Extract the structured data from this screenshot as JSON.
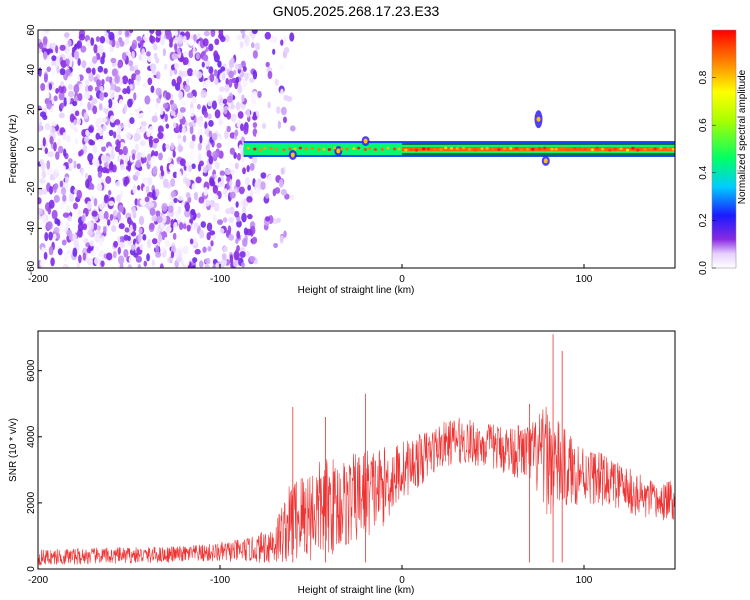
{
  "chart_data": [
    {
      "type": "heatmap",
      "title": "GN05.2025.268.17.23.E33",
      "xlabel": "Height of straight line (km)",
      "ylabel": "Frequency (Hz)",
      "xlim": [
        -200,
        150
      ],
      "ylim": [
        -60,
        60
      ],
      "x_ticks": [
        -200,
        -100,
        0,
        100
      ],
      "x_tick_labels": [
        "-200",
        "-100",
        "0",
        "100"
      ],
      "y_ticks": [
        -60,
        -40,
        -20,
        0,
        20,
        40,
        60
      ],
      "y_tick_labels": [
        "-60",
        "-40",
        "-20",
        "0",
        "20",
        "40",
        "60"
      ],
      "grid": false,
      "colorbar": {
        "label": "Normalized spectral amplitude",
        "range": [
          0,
          1
        ],
        "ticks": [
          0,
          0.2,
          0.4,
          0.6,
          0.8
        ],
        "tick_labels": [
          "0.0",
          "0.2",
          "0.4",
          "0.6",
          "0.8"
        ],
        "colormap": "rainbow (purple to red)"
      },
      "features": {
        "noise_region_x": [
          -200,
          -60
        ],
        "noise_amplitude": 0.15,
        "dense_noise_until_x": -80,
        "signal_band_x": [
          -87,
          150
        ],
        "signal_band_y": [
          -3,
          3
        ],
        "signal_amplitude": 0.9,
        "disturbances": [
          {
            "x": -20,
            "y": 4
          },
          {
            "x": -35,
            "y": -1
          },
          {
            "x": -60,
            "y": -3
          },
          {
            "x": 75,
            "y": 15
          },
          {
            "x": 79,
            "y": -6
          }
        ]
      }
    },
    {
      "type": "line",
      "title": "",
      "xlabel": "Height of straight line (km)",
      "ylabel": "SNR (10 * v/v)",
      "xlim": [
        -200,
        150
      ],
      "ylim": [
        0,
        7200
      ],
      "x_ticks": [
        -200,
        -100,
        0,
        100
      ],
      "x_tick_labels": [
        "-200",
        "-100",
        "0",
        "100"
      ],
      "y_ticks": [
        0,
        2000,
        4000,
        6000
      ],
      "y_tick_labels": [
        "0",
        "2000",
        "4000",
        "6000"
      ],
      "grid": false,
      "series": [
        {
          "color": "#ee3333",
          "x": [
            -200,
            -180,
            -160,
            -140,
            -120,
            -100,
            -80,
            -70,
            -60,
            -50,
            -40,
            -30,
            -20,
            -10,
            0,
            10,
            20,
            30,
            40,
            50,
            60,
            70,
            80,
            90,
            100,
            110,
            120,
            130,
            140,
            150
          ],
          "y": [
            350,
            380,
            400,
            420,
            450,
            500,
            600,
            800,
            1500,
            1700,
            1900,
            2000,
            2300,
            2500,
            3000,
            3300,
            3700,
            3900,
            3800,
            3700,
            3600,
            3500,
            3300,
            3000,
            2900,
            2700,
            2500,
            2200,
            2000,
            2100
          ],
          "spread": [
            250,
            250,
            250,
            250,
            250,
            300,
            400,
            700,
            1300,
            1500,
            1500,
            1400,
            1400,
            1200,
            900,
            800,
            700,
            700,
            700,
            700,
            800,
            900,
            1700,
            1200,
            900,
            800,
            700,
            700,
            600,
            600
          ]
        }
      ],
      "spikes": [
        {
          "x": 83,
          "y": 7100
        },
        {
          "x": 88,
          "y": 6600
        },
        {
          "x": -20,
          "y": 5300
        },
        {
          "x": -60,
          "y": 4900
        },
        {
          "x": -42,
          "y": 4600
        },
        {
          "x": 70,
          "y": 5000
        }
      ]
    }
  ]
}
